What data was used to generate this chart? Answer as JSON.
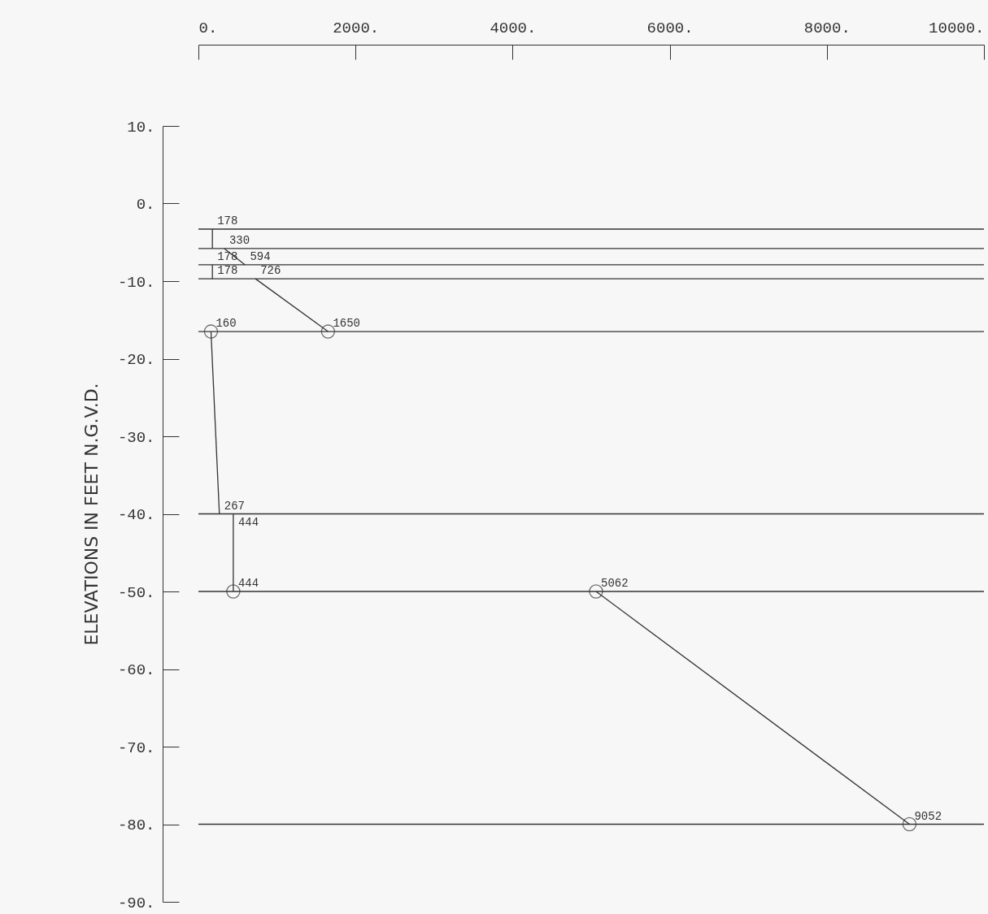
{
  "chart_data": {
    "type": "line",
    "ylabel": "ELEVATIONS IN FEET N.G.V.D.",
    "xlim": [
      0,
      10000
    ],
    "xticks": [
      {
        "value": 0,
        "label": "0."
      },
      {
        "value": 2000,
        "label": "2000."
      },
      {
        "value": 4000,
        "label": "4000."
      },
      {
        "value": 6000,
        "label": "6000."
      },
      {
        "value": 8000,
        "label": "8000."
      },
      {
        "value": 10000,
        "label": "10000."
      }
    ],
    "ylim": [
      -90,
      10
    ],
    "yticks": [
      {
        "value": 10,
        "label": "10."
      },
      {
        "value": 0,
        "label": "0."
      },
      {
        "value": -10,
        "label": "-10."
      },
      {
        "value": -20,
        "label": "-20."
      },
      {
        "value": -30,
        "label": "-30."
      },
      {
        "value": -40,
        "label": "-40."
      },
      {
        "value": -50,
        "label": "-50."
      },
      {
        "value": -60,
        "label": "-60."
      },
      {
        "value": -70,
        "label": "-70."
      },
      {
        "value": -80,
        "label": "-80."
      },
      {
        "value": -90,
        "label": "-90."
      }
    ],
    "grid": false,
    "series": [
      {
        "color": "#333333",
        "x": [
          178,
          178
        ],
        "values": [
          -3.3,
          -5.8
        ]
      },
      {
        "color": "#333333",
        "x": [
          330,
          594
        ],
        "values": [
          -5.8,
          -7.9
        ]
      },
      {
        "color": "#333333",
        "x": [
          178,
          178
        ],
        "values": [
          -7.9,
          -9.7
        ]
      },
      {
        "color": "#333333",
        "x": [
          726,
          1650
        ],
        "values": [
          -9.7,
          -16.5
        ]
      },
      {
        "color": "#333333",
        "x": [
          160,
          267
        ],
        "values": [
          -16.5,
          -40
        ]
      },
      {
        "color": "#333333",
        "x": [
          444,
          444
        ],
        "values": [
          -40,
          -50
        ]
      },
      {
        "color": "#333333",
        "x": [
          5062,
          9052
        ],
        "values": [
          -50,
          -80
        ]
      },
      {
        "type": "scatter",
        "color": "#333333",
        "marker": "circle",
        "x": [
          160,
          1650,
          444,
          5062,
          9052
        ],
        "values": [
          -16.5,
          -16.5,
          -50,
          -50,
          -80
        ]
      }
    ],
    "ref_lines": [
      {
        "axis": "y",
        "value": -3.3,
        "color": "#333333"
      },
      {
        "axis": "y",
        "value": -5.8,
        "color": "#333333"
      },
      {
        "axis": "y",
        "value": -7.9,
        "color": "#333333"
      },
      {
        "axis": "y",
        "value": -9.7,
        "color": "#333333"
      },
      {
        "axis": "y",
        "value": -16.5,
        "color": "#333333"
      },
      {
        "axis": "y",
        "value": -40,
        "color": "#333333"
      },
      {
        "axis": "y",
        "value": -50,
        "color": "#333333"
      },
      {
        "axis": "y",
        "value": -80,
        "color": "#333333"
      }
    ],
    "annotations": [
      {
        "text": "178",
        "x": 178,
        "y": -3.3
      },
      {
        "text": "330",
        "x": 330,
        "y": -5.8
      },
      {
        "text": "594",
        "x": 594,
        "y": -7.9
      },
      {
        "text": "178",
        "x": 178,
        "y": -7.9
      },
      {
        "text": "178",
        "x": 178,
        "y": -9.7
      },
      {
        "text": "726",
        "x": 726,
        "y": -9.7
      },
      {
        "text": "160",
        "x": 160,
        "y": -16.5
      },
      {
        "text": "1650",
        "x": 1650,
        "y": -16.5
      },
      {
        "text": "267",
        "x": 267,
        "y": -40
      },
      {
        "text": "444",
        "x": 444,
        "y": -40
      },
      {
        "text": "444",
        "x": 444,
        "y": -50
      },
      {
        "text": "5062",
        "x": 5062,
        "y": -50
      },
      {
        "text": "9052",
        "x": 9052,
        "y": -80
      }
    ]
  }
}
